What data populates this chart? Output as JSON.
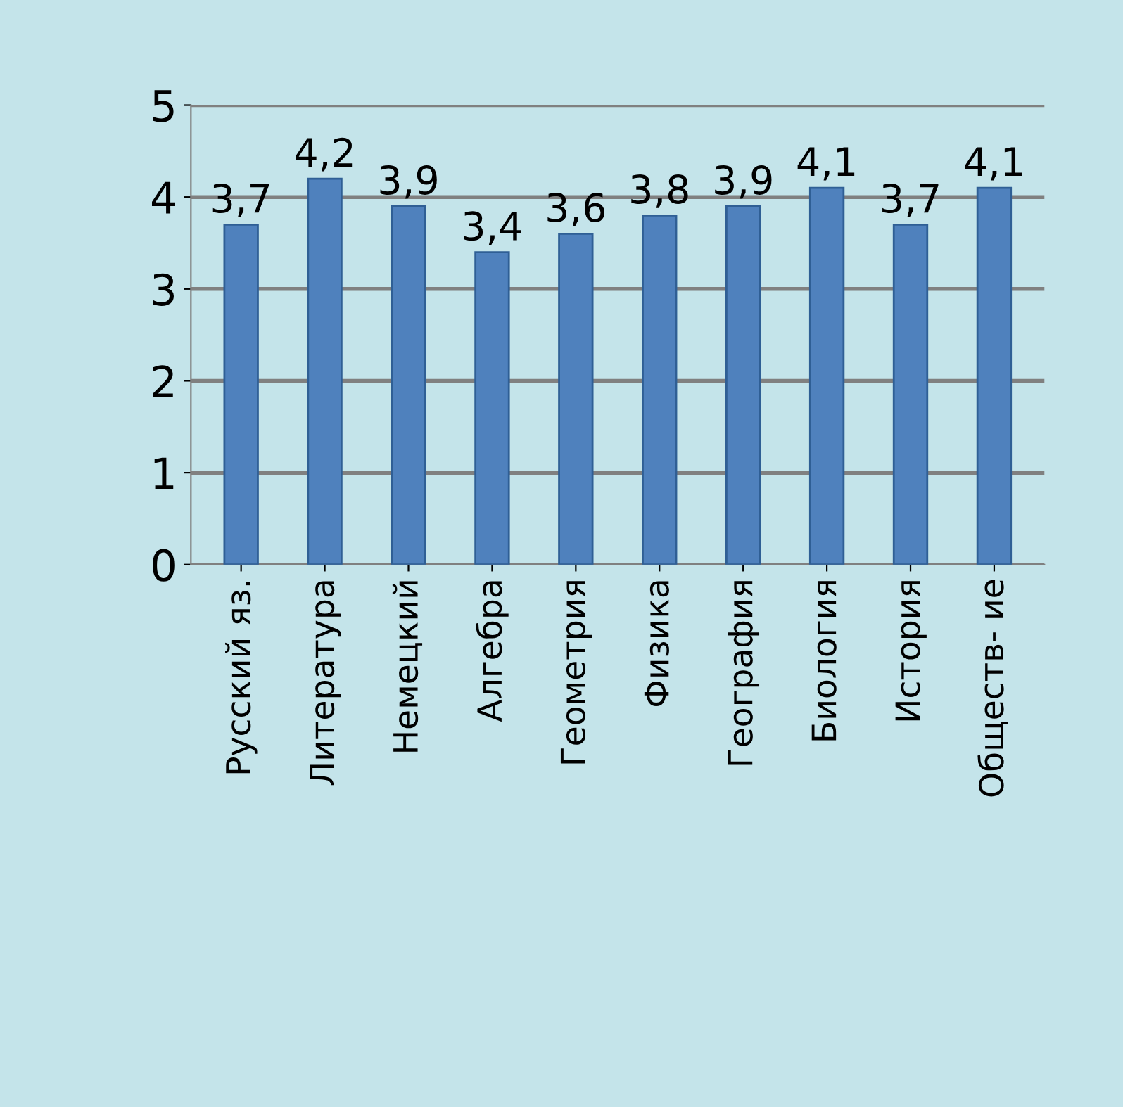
{
  "chart_data": {
    "type": "bar",
    "categories": [
      "Русский яз.",
      "Литература",
      "Немецкий",
      "Алгебра",
      "Геометрия",
      "Физика",
      "География",
      "Биология",
      "История",
      "Обществ- ие"
    ],
    "values": [
      3.7,
      4.2,
      3.9,
      3.4,
      3.6,
      3.8,
      3.9,
      4.1,
      3.7,
      4.1
    ],
    "value_labels": [
      "3,7",
      "4,2",
      "3,9",
      "3,4",
      "3,6",
      "3,8",
      "3,9",
      "4,1",
      "3,7",
      "4,1"
    ],
    "color": "#4f81bd",
    "ylim": [
      0,
      5
    ],
    "yticks": [
      0,
      1,
      2,
      3,
      4,
      5
    ],
    "grid": "y",
    "legend": false
  }
}
